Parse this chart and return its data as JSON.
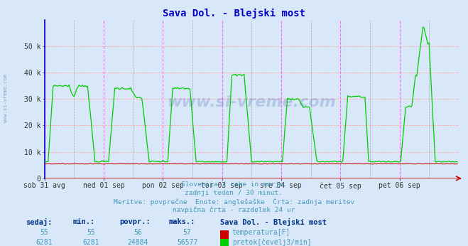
{
  "title": "Sava Dol. - Blejski most",
  "title_color": "#0000cc",
  "bg_color": "#d8e8f8",
  "grid_color_h": "#ffaaaa",
  "grid_color_v": "#ff66ff",
  "grid_color_v2": "#aaaaaa",
  "ylim": [
    0,
    60000
  ],
  "yticks": [
    0,
    10000,
    20000,
    30000,
    40000,
    50000
  ],
  "ytick_labels": [
    "0",
    "10 k",
    "20 k",
    "30 k",
    "40 k",
    "50 k"
  ],
  "xlabel_dates": [
    "sob 31 avg",
    "ned 01 sep",
    "pon 02 sep",
    "tor 03 sep",
    "sre 04 sep",
    "čet 05 sep",
    "pet 06 sep"
  ],
  "x_day_positions": [
    0,
    48,
    96,
    144,
    192,
    240,
    288
  ],
  "total_points": 336,
  "temp_color": "#cc0000",
  "flow_color": "#00cc00",
  "temp_value": 55,
  "temp_min": 55,
  "temp_avg": 56,
  "temp_max": 57,
  "flow_value": 6281,
  "flow_min": 6281,
  "flow_avg": 24884,
  "flow_max": 56577,
  "subtitle_line1": "Slovenija / reke in morje.",
  "subtitle_line2": "zadnji teden / 30 minut.",
  "subtitle_line3": "Meritve: povprečne  Enote: anglešaške  Črta: zadnja meritev",
  "subtitle_line4": "navpična črta - razdelek 24 ur",
  "legend_title": "Sava Dol. - Blejski most",
  "text_color": "#4499bb",
  "label_color_bold": "#003388",
  "watermark": "www.si-vreme.com",
  "left_border_color": "#0000cc",
  "bottom_border_color": "#cc0000",
  "arrow_color": "#cc0000"
}
